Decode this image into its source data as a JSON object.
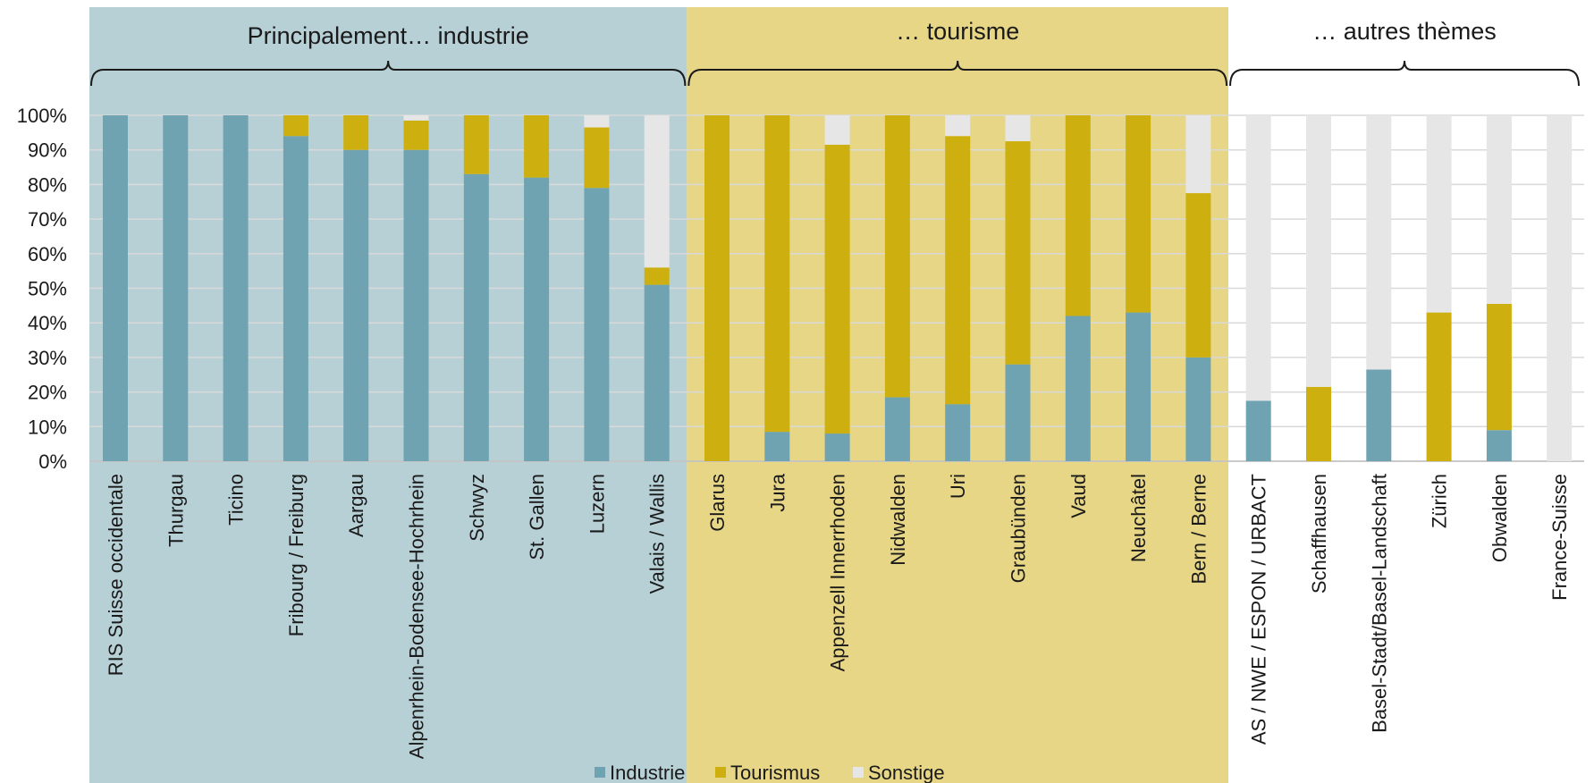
{
  "chart_data": {
    "type": "bar",
    "stacked": true,
    "percent": true,
    "ylim": [
      0,
      100
    ],
    "yticks": [
      "0%",
      "10%",
      "20%",
      "30%",
      "40%",
      "50%",
      "60%",
      "70%",
      "80%",
      "90%",
      "100%"
    ],
    "grid": true,
    "legend_position": "bottom",
    "groups": [
      {
        "label": "Principalement… industrie",
        "color": "#b7d0d6",
        "from": 0,
        "to": 9
      },
      {
        "label": "… tourisme",
        "color": "#e6d686",
        "from": 10,
        "to": 18
      },
      {
        "label": "… autres thèmes",
        "color": "#ffffff",
        "from": 19,
        "to": 24
      }
    ],
    "categories": [
      "RIS Suisse occidentale",
      "Thurgau",
      "Ticino",
      "Fribourg / Freiburg",
      "Aargau",
      "Alpenrhein-Bodensee-Hochrhein",
      "Schwyz",
      "St. Gallen",
      "Luzern",
      "Valais / Wallis",
      "Glarus",
      "Jura",
      "Appenzell Innerrhoden",
      "Nidwalden",
      "Uri",
      "Graubünden",
      "Vaud",
      "Neuchâtel",
      "Bern / Berne",
      "AS / NWE / ESPON / URBACT",
      "Schaffhausen",
      "Basel-Stadt/Basel-Landschaft",
      "Zürich",
      "Obwalden",
      "France-Suisse"
    ],
    "series": [
      {
        "name": "Industrie",
        "color": "#6fa3b1",
        "values": [
          100,
          100,
          100,
          94,
          90,
          90,
          83,
          82,
          79,
          51,
          0,
          8.5,
          8,
          18.5,
          16.5,
          28,
          42,
          43,
          30,
          17.5,
          0,
          26.5,
          0,
          9,
          0
        ]
      },
      {
        "name": "Tourismus",
        "color": "#cdb010",
        "values": [
          0,
          0,
          0,
          6,
          10,
          8.5,
          17,
          18,
          17.5,
          5,
          100,
          91.5,
          83.5,
          81.5,
          77.5,
          64.5,
          58,
          57,
          47.5,
          0,
          21.5,
          0,
          43,
          36.5,
          0
        ]
      },
      {
        "name": "Sonstige",
        "color": "#e6e6e6",
        "values": [
          0,
          0,
          0,
          0,
          0,
          1.5,
          0,
          0,
          3.5,
          44,
          0,
          0,
          8.5,
          0,
          6,
          7.5,
          0,
          0,
          22.5,
          82.5,
          78.5,
          73.5,
          57,
          54.5,
          100
        ]
      }
    ]
  }
}
